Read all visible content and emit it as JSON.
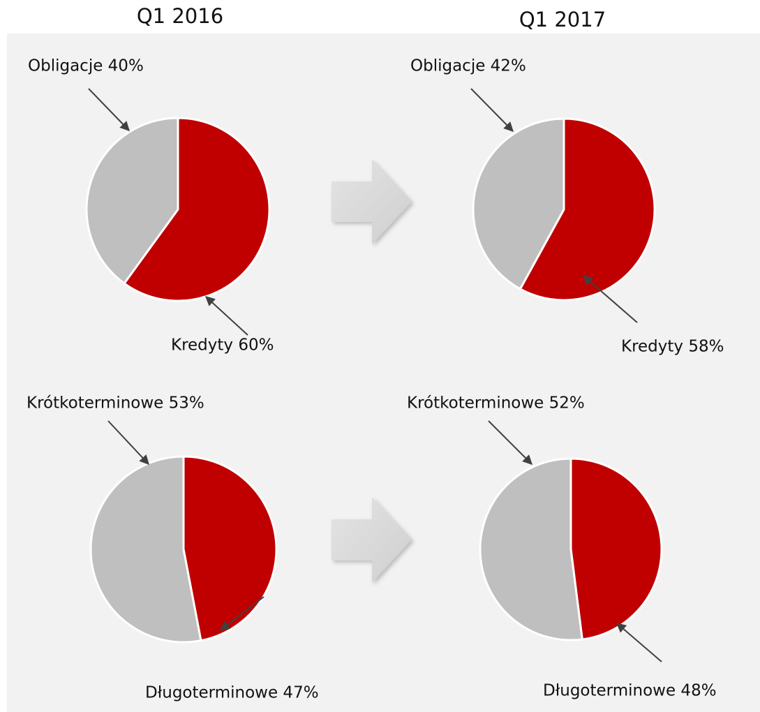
{
  "chart_data": [
    {
      "type": "pie",
      "title": "Q1 2016",
      "values": [
        60,
        40
      ],
      "value_labels": [
        "Kredyty 60%",
        "Obligacje 40%"
      ],
      "colors": [
        "#c00000",
        "#bfbfbf"
      ]
    },
    {
      "type": "pie",
      "title": "Q1 2017",
      "values": [
        58,
        42
      ],
      "value_labels": [
        "Kredyty 58%",
        "Obligacje 42%"
      ],
      "colors": [
        "#c00000",
        "#bfbfbf"
      ]
    },
    {
      "type": "pie",
      "values": [
        47,
        53
      ],
      "value_labels": [
        "Długoterminowe 47%",
        "Krótkoterminowe 53%"
      ],
      "colors": [
        "#c00000",
        "#bfbfbf"
      ]
    },
    {
      "type": "pie",
      "values": [
        48,
        52
      ],
      "value_labels": [
        "Długoterminowe 48%",
        "Krótkoterminowe 52%"
      ],
      "colors": [
        "#c00000",
        "#bfbfbf"
      ]
    }
  ]
}
